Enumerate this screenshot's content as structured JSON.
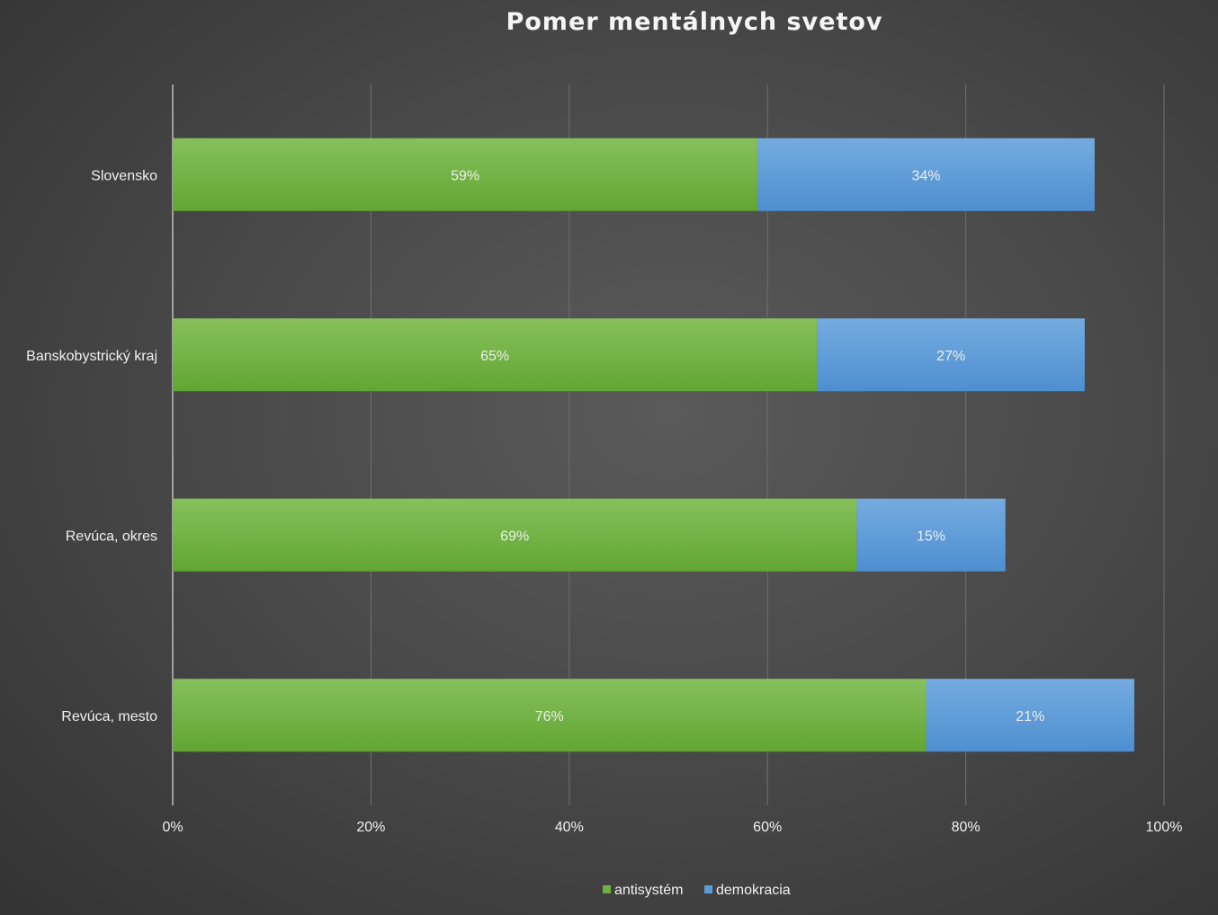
{
  "chart_data": {
    "type": "bar",
    "orientation": "horizontal",
    "stacked": true,
    "title": "Pomer mentálnych svetov",
    "categories": [
      "Slovensko",
      "Banskobystrický kraj",
      "Revúca, okres",
      "Revúca, mesto"
    ],
    "series": [
      {
        "name": "antisystém",
        "color": "#6fb040",
        "values": [
          59,
          65,
          69,
          76
        ],
        "labels": [
          "59%",
          "65%",
          "69%",
          "76%"
        ]
      },
      {
        "name": "demokracia",
        "color": "#5b9bd8",
        "values": [
          34,
          27,
          15,
          21
        ],
        "labels": [
          "34%",
          "27%",
          "15%",
          "21%"
        ]
      }
    ],
    "xlim": [
      0,
      100
    ],
    "xticks": [
      0,
      20,
      40,
      60,
      80,
      100
    ],
    "xtick_labels": [
      "0%",
      "20%",
      "40%",
      "60%",
      "80%",
      "100%"
    ],
    "grid": true,
    "legend": "bottom"
  }
}
